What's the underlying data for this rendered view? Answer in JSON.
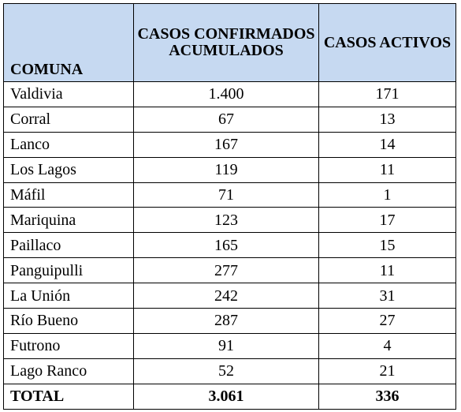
{
  "table": {
    "headers": {
      "comuna": "COMUNA",
      "confirmados": "CASOS CONFIRMADOS ACUMULADOS",
      "activos": "CASOS ACTIVOS"
    },
    "rows": [
      {
        "comuna": "Valdivia",
        "confirmados": "1.400",
        "activos": "171"
      },
      {
        "comuna": "Corral",
        "confirmados": "67",
        "activos": "13"
      },
      {
        "comuna": "Lanco",
        "confirmados": "167",
        "activos": "14"
      },
      {
        "comuna": "Los Lagos",
        "confirmados": "119",
        "activos": "11"
      },
      {
        "comuna": "Máfil",
        "confirmados": "71",
        "activos": "1"
      },
      {
        "comuna": "Mariquina",
        "confirmados": "123",
        "activos": "17"
      },
      {
        "comuna": "Paillaco",
        "confirmados": "165",
        "activos": "15"
      },
      {
        "comuna": "Panguipulli",
        "confirmados": "277",
        "activos": "11"
      },
      {
        "comuna": "La Unión",
        "confirmados": "242",
        "activos": "31"
      },
      {
        "comuna": "Río Bueno",
        "confirmados": "287",
        "activos": "27"
      },
      {
        "comuna": "Futrono",
        "confirmados": "91",
        "activos": "4"
      },
      {
        "comuna": "Lago Ranco",
        "confirmados": "52",
        "activos": "21"
      }
    ],
    "total": {
      "label": "TOTAL",
      "confirmados": "3.061",
      "activos": "336"
    }
  },
  "colors": {
    "header_background": "#c6d9f1",
    "border": "#000000"
  }
}
